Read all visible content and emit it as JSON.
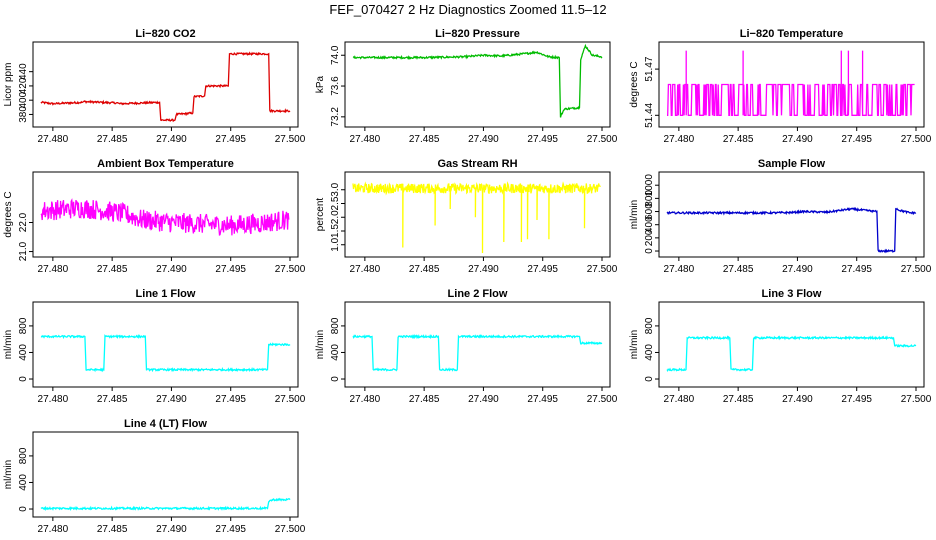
{
  "title": "FEF_070427  2 Hz Diagnostics Zoomed 11.5–12",
  "chart_data": [
    {
      "type": "line",
      "title": "Li−820 CO2",
      "ylabel": "Licor ppm",
      "color": "#dd0000",
      "xlim": [
        27.479,
        27.5
      ],
      "ylim": [
        368,
        476
      ],
      "xticks": [
        "27.480",
        "27.485",
        "27.490",
        "27.495",
        "27.500"
      ],
      "yticks": [
        "380",
        "400",
        "420",
        "440"
      ],
      "series": [
        {
          "x": [
            27.479,
            27.48,
            27.4825,
            27.4826,
            27.4855,
            27.4856,
            27.489,
            27.4891,
            27.4903,
            27.4904,
            27.4918,
            27.4919,
            27.4928,
            27.4929,
            27.4948,
            27.4949,
            27.4982,
            27.4983,
            27.5
          ],
          "y": [
            397,
            395,
            397,
            398,
            396,
            395,
            397,
            372,
            372,
            380,
            382,
            405,
            406,
            420,
            420,
            465,
            465,
            385,
            385
          ]
        }
      ]
    },
    {
      "type": "line",
      "title": "Li−820 Pressure",
      "ylabel": "kPa",
      "color": "#00bb00",
      "xlim": [
        27.479,
        27.5
      ],
      "ylim": [
        73.12,
        74.12
      ],
      "xticks": [
        "27.480",
        "27.485",
        "27.490",
        "27.495",
        "27.500"
      ],
      "yticks": [
        "73.2",
        "73.6",
        "74.0"
      ],
      "series": [
        {
          "x": [
            27.479,
            27.485,
            27.4885,
            27.49,
            27.4915,
            27.4935,
            27.4945,
            27.4955,
            27.4964,
            27.4965,
            27.4968,
            27.4981,
            27.4982,
            27.4986,
            27.4992,
            27.5
          ],
          "y": [
            73.97,
            73.97,
            73.98,
            74.0,
            73.99,
            74.02,
            74.04,
            73.98,
            73.97,
            73.2,
            73.3,
            73.32,
            73.95,
            74.12,
            74.0,
            73.98
          ]
        }
      ]
    },
    {
      "type": "line",
      "title": "Li−820 Temperature",
      "ylabel": "degrees C",
      "color": "#ff00ff",
      "xlim": [
        27.479,
        27.5
      ],
      "ylim": [
        51.435,
        51.485
      ],
      "xticks": [
        "27.480",
        "27.485",
        "27.490",
        "27.495",
        "27.500"
      ],
      "yticks": [
        "51.44",
        "51.47"
      ],
      "series": [
        {
          "base": 51.44,
          "level": 51.46,
          "spike": 51.482,
          "spikes_x": [
            27.4806,
            27.4854,
            27.4937,
            27.4943,
            27.4955
          ]
        }
      ]
    },
    {
      "type": "line",
      "title": "Ambient Box Temperature",
      "ylabel": "degrees C",
      "color": "#ff00ff",
      "xlim": [
        27.479,
        27.5
      ],
      "ylim": [
        20.95,
        23.6
      ],
      "xticks": [
        "27.480",
        "27.485",
        "27.490",
        "27.495",
        "27.500"
      ],
      "yticks": [
        "21.0",
        "22.0"
      ],
      "series": [
        {
          "x": [
            27.479,
            27.4825,
            27.4845,
            27.486,
            27.4875,
            27.49,
            27.495,
            27.498,
            27.4999
          ],
          "y": [
            22.4,
            22.5,
            22.4,
            22.3,
            22.1,
            22.0,
            21.9,
            22.0,
            22.1
          ],
          "noise": 0.35
        }
      ]
    },
    {
      "type": "line",
      "title": "Gas Stream RH",
      "ylabel": "percent",
      "color": "#ffff00",
      "xlim": [
        27.479,
        27.5
      ],
      "ylim": [
        0.7,
        3.5
      ],
      "xticks": [
        "27.480",
        "27.485",
        "27.490",
        "27.495",
        "27.500"
      ],
      "yticks": [
        "1.0",
        "1.5",
        "2.0",
        "2.5",
        "3.0"
      ],
      "series": [
        {
          "level": 3.05,
          "noise": 0.18,
          "dips": [
            [
              27.4832,
              0.9
            ],
            [
              27.4859,
              1.7
            ],
            [
              27.4872,
              2.3
            ],
            [
              27.4893,
              2.0
            ],
            [
              27.4899,
              0.7
            ],
            [
              27.4917,
              1.1
            ],
            [
              27.4932,
              1.1
            ],
            [
              27.4937,
              1.2
            ],
            [
              27.4945,
              1.9
            ],
            [
              27.4955,
              1.2
            ],
            [
              27.4985,
              1.6
            ]
          ]
        }
      ]
    },
    {
      "type": "line",
      "title": "Sample Flow",
      "ylabel": "ml/min",
      "color": "#0000cc",
      "xlim": [
        27.479,
        27.5
      ],
      "ylim": [
        -30,
        1140
      ],
      "xticks": [
        "27.480",
        "27.485",
        "27.490",
        "27.495",
        "27.500"
      ],
      "yticks": [
        "0",
        "200",
        "400",
        "600",
        "800",
        "1000"
      ],
      "series": [
        {
          "x": [
            27.479,
            27.488,
            27.4895,
            27.4905,
            27.4925,
            27.4945,
            27.4967,
            27.4968,
            27.4982,
            27.4983,
            27.4986,
            27.4995,
            27.5
          ],
          "y": [
            580,
            580,
            585,
            600,
            590,
            640,
            600,
            0,
            0,
            650,
            620,
            580,
            580
          ]
        }
      ]
    },
    {
      "type": "line",
      "title": "Line 1 Flow",
      "ylabel": "ml/min",
      "color": "#00ffff",
      "xlim": [
        27.479,
        27.5
      ],
      "ylim": [
        -60,
        1100
      ],
      "xticks": [
        "27.480",
        "27.485",
        "27.490",
        "27.495",
        "27.500"
      ],
      "yticks": [
        "0",
        "400",
        "800"
      ],
      "series": [
        {
          "x": [
            27.479,
            27.4827,
            27.4828,
            27.4843,
            27.4844,
            27.4878,
            27.4879,
            27.4981,
            27.4982,
            27.5
          ],
          "y": [
            640,
            640,
            140,
            140,
            640,
            640,
            140,
            140,
            520,
            520
          ]
        }
      ]
    },
    {
      "type": "line",
      "title": "Line 2 Flow",
      "ylabel": "ml/min",
      "color": "#00ffff",
      "xlim": [
        27.479,
        27.5
      ],
      "ylim": [
        -60,
        1100
      ],
      "xticks": [
        "27.480",
        "27.485",
        "27.490",
        "27.495",
        "27.500"
      ],
      "yticks": [
        "0",
        "400",
        "800"
      ],
      "series": [
        {
          "x": [
            27.479,
            27.4806,
            27.4807,
            27.4827,
            27.4828,
            27.4862,
            27.4863,
            27.4878,
            27.4879,
            27.4981,
            27.4982,
            27.5
          ],
          "y": [
            640,
            640,
            140,
            140,
            640,
            640,
            140,
            140,
            640,
            640,
            540,
            540
          ]
        }
      ]
    },
    {
      "type": "line",
      "title": "Line 3 Flow",
      "ylabel": "ml/min",
      "color": "#00ffff",
      "xlim": [
        27.479,
        27.5
      ],
      "ylim": [
        -60,
        1100
      ],
      "xticks": [
        "27.480",
        "27.485",
        "27.490",
        "27.495",
        "27.500"
      ],
      "yticks": [
        "0",
        "400",
        "800"
      ],
      "series": [
        {
          "x": [
            27.479,
            27.4806,
            27.4807,
            27.4843,
            27.4844,
            27.4862,
            27.4863,
            27.4981,
            27.4982,
            27.5
          ],
          "y": [
            140,
            140,
            620,
            620,
            140,
            140,
            620,
            620,
            500,
            500
          ]
        }
      ]
    },
    {
      "type": "line",
      "title": "Line 4 (LT) Flow",
      "ylabel": "ml/min",
      "color": "#00ffff",
      "xlim": [
        27.479,
        27.5
      ],
      "ylim": [
        -60,
        1100
      ],
      "xticks": [
        "27.480",
        "27.485",
        "27.490",
        "27.495",
        "27.500"
      ],
      "yticks": [
        "0",
        "400",
        "800"
      ],
      "series": [
        {
          "x": [
            27.479,
            27.4981,
            27.4982,
            27.4986,
            27.5
          ],
          "y": [
            10,
            10,
            120,
            140,
            140
          ]
        }
      ]
    }
  ]
}
